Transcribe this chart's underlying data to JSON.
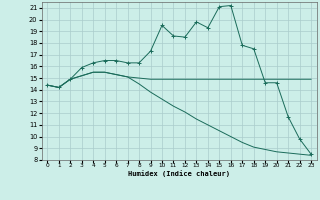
{
  "xlabel": "Humidex (Indice chaleur)",
  "bg_color": "#cceee8",
  "grid_color": "#aacccc",
  "line_color": "#1a6b5a",
  "xlim": [
    -0.5,
    23.5
  ],
  "ylim": [
    8,
    21.5
  ],
  "xticks": [
    0,
    1,
    2,
    3,
    4,
    5,
    6,
    7,
    8,
    9,
    10,
    11,
    12,
    13,
    14,
    15,
    16,
    17,
    18,
    19,
    20,
    21,
    22,
    23
  ],
  "yticks": [
    8,
    9,
    10,
    11,
    12,
    13,
    14,
    15,
    16,
    17,
    18,
    19,
    20,
    21
  ],
  "curve1_x": [
    0,
    1,
    2,
    3,
    4,
    5,
    6,
    7,
    8,
    9,
    10,
    11,
    12,
    13,
    14,
    15,
    16,
    17,
    18,
    19,
    20,
    21,
    22,
    23
  ],
  "curve1_y": [
    14.4,
    14.2,
    14.9,
    15.9,
    16.3,
    16.5,
    16.5,
    16.3,
    16.3,
    17.3,
    19.5,
    18.6,
    18.5,
    19.8,
    19.3,
    21.1,
    21.2,
    17.8,
    17.5,
    14.6,
    14.6,
    11.7,
    9.8,
    8.5
  ],
  "curve2_x": [
    0,
    1,
    2,
    3,
    4,
    5,
    6,
    7,
    8,
    9,
    10,
    11,
    12,
    13,
    14,
    15,
    16,
    17,
    18,
    19,
    20,
    21,
    22,
    23
  ],
  "curve2_y": [
    14.4,
    14.2,
    14.9,
    15.2,
    15.5,
    15.5,
    15.3,
    15.1,
    15.0,
    14.9,
    14.9,
    14.9,
    14.9,
    14.9,
    14.9,
    14.9,
    14.9,
    14.9,
    14.9,
    14.9,
    14.9,
    14.9,
    14.9,
    14.9
  ],
  "curve3_x": [
    0,
    1,
    2,
    3,
    4,
    5,
    6,
    7,
    8,
    9,
    10,
    11,
    12,
    13,
    14,
    15,
    16,
    17,
    18,
    19,
    20,
    21,
    22,
    23
  ],
  "curve3_y": [
    14.4,
    14.2,
    14.9,
    15.2,
    15.5,
    15.5,
    15.3,
    15.1,
    14.5,
    13.8,
    13.2,
    12.6,
    12.1,
    11.5,
    11.0,
    10.5,
    10.0,
    9.5,
    9.1,
    8.9,
    8.7,
    8.6,
    8.5,
    8.4
  ]
}
